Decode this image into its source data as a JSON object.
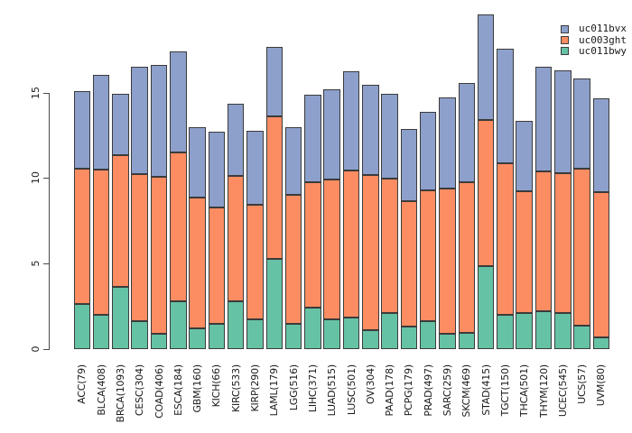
{
  "chart_data": {
    "type": "bar",
    "stacked": true,
    "title": "",
    "xlabel": "",
    "ylabel": "",
    "grid": false,
    "ylim": [
      0,
      19.6
    ],
    "yticks": [
      "0",
      "5",
      "10",
      "15"
    ],
    "ytick_values": [
      0,
      5,
      10,
      15
    ],
    "legend_position": "top-right",
    "categories": [
      "ACC(79)",
      "BLCA(408)",
      "BRCA(1093)",
      "CESC(304)",
      "COAD(406)",
      "ESCA(184)",
      "GBM(160)",
      "KICH(66)",
      "KIRC(533)",
      "KIRP(290)",
      "LAML(179)",
      "LGG(516)",
      "LIHC(371)",
      "LUAD(515)",
      "LUSC(501)",
      "OV(304)",
      "PAAD(178)",
      "PCPG(179)",
      "PRAD(497)",
      "SARC(259)",
      "SKCM(469)",
      "STAD(415)",
      "TGCT(150)",
      "THCA(501)",
      "THYM(120)",
      "UCEC(545)",
      "UCS(57)",
      "UVM(80)"
    ],
    "series": [
      {
        "name": "uc011bwy",
        "color": "#66C2A5",
        "stack_order": "bottom",
        "values": [
          2.65,
          2.0,
          3.65,
          1.6,
          0.9,
          2.8,
          1.2,
          1.45,
          2.8,
          1.75,
          5.25,
          1.45,
          2.4,
          1.75,
          1.85,
          1.1,
          2.1,
          1.3,
          1.6,
          0.9,
          0.95,
          4.85,
          2.0,
          2.1,
          2.2,
          2.1,
          1.35,
          0.65
        ]
      },
      {
        "name": "uc003ght",
        "color": "#FC8D62",
        "stack_order": "middle",
        "values": [
          7.9,
          8.5,
          7.7,
          8.65,
          9.15,
          8.7,
          7.65,
          6.85,
          7.3,
          6.7,
          8.35,
          7.55,
          7.35,
          8.15,
          8.6,
          9.1,
          7.85,
          7.35,
          7.7,
          8.5,
          8.8,
          8.55,
          8.85,
          7.15,
          8.2,
          8.2,
          9.2,
          8.5
        ]
      },
      {
        "name": "uc011bvx",
        "color": "#8DA0CB",
        "stack_order": "top",
        "values": [
          4.55,
          5.55,
          3.6,
          6.25,
          6.55,
          5.9,
          4.15,
          4.4,
          4.25,
          4.3,
          4.1,
          4.0,
          5.15,
          5.3,
          5.8,
          5.25,
          5.0,
          4.2,
          4.6,
          5.3,
          5.8,
          6.2,
          6.7,
          4.1,
          6.1,
          6.0,
          5.3,
          5.5
        ]
      },
      {
        "name": "_totals",
        "color": "",
        "stack_order": "derived",
        "values": [
          15.1,
          16.05,
          14.95,
          16.5,
          16.6,
          17.4,
          13.0,
          12.7,
          14.35,
          12.75,
          17.7,
          13.0,
          14.9,
          15.2,
          16.25,
          15.45,
          14.95,
          12.85,
          13.9,
          14.7,
          15.55,
          19.6,
          17.55,
          13.35,
          16.5,
          16.3,
          15.85,
          14.65
        ]
      }
    ],
    "legend": {
      "entries": [
        {
          "label": "uc011bvx",
          "color": "#8DA0CB"
        },
        {
          "label": "uc003ght",
          "color": "#FC8D62"
        },
        {
          "label": "uc011bwy",
          "color": "#66C2A5"
        }
      ]
    },
    "colors": {
      "bar_border": "#3b3b3b",
      "axis": "#4a4a4a",
      "text": "#1a1a1a",
      "background": "#ffffff"
    }
  }
}
